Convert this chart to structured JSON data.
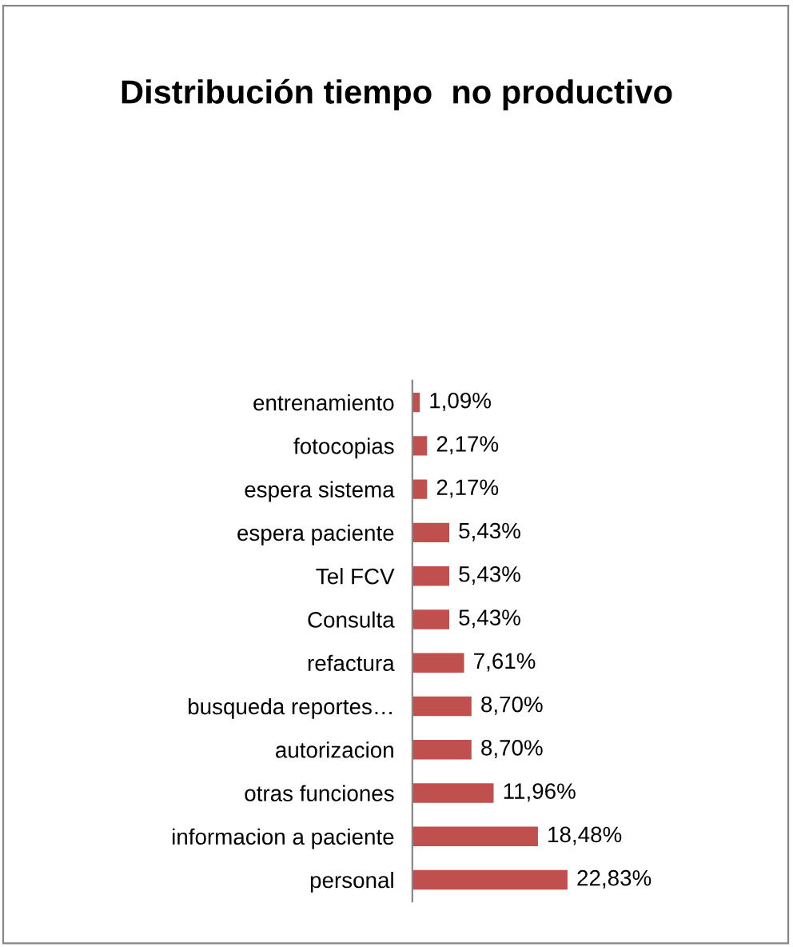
{
  "chart_data": {
    "type": "bar",
    "orientation": "horizontal",
    "title": "Distribución tiempo  no productivo",
    "categories": [
      "entrenamiento",
      "fotocopias",
      "espera sistema",
      "espera paciente",
      "Tel FCV",
      "Consulta",
      "refactura",
      "busqueda reportes…",
      "autorizacion",
      "otras funciones",
      "informacion a paciente",
      "personal"
    ],
    "values": [
      1.09,
      2.17,
      2.17,
      5.43,
      5.43,
      5.43,
      7.61,
      8.7,
      8.7,
      11.96,
      18.48,
      22.83
    ],
    "value_labels": [
      "1,09%",
      "2,17%",
      "2,17%",
      "5,43%",
      "5,43%",
      "5,43%",
      "7,61%",
      "8,70%",
      "8,70%",
      "11,96%",
      "18,48%",
      "22,83%"
    ],
    "color": "#c0504d",
    "grid": false,
    "legend": false
  }
}
